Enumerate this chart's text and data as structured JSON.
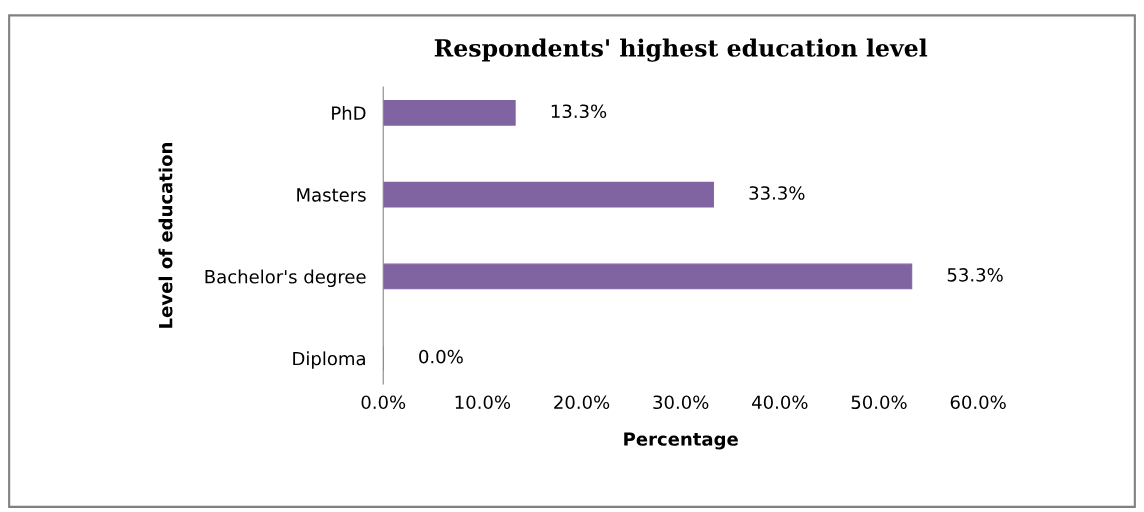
{
  "chart_data": {
    "type": "bar",
    "orientation": "horizontal",
    "title": "Respondents' highest education level",
    "xlabel": "Percentage",
    "ylabel": "Level of education",
    "categories": [
      "PhD",
      "Masters",
      "Bachelor's degree",
      "Diploma"
    ],
    "values": [
      13.3,
      33.3,
      53.3,
      0.0
    ],
    "value_labels": [
      "13.3%",
      "33.3%",
      "53.3%",
      "0.0%"
    ],
    "color": "#8064a2",
    "xlim": [
      0,
      60
    ],
    "xticks": [
      {
        "value": 0,
        "label": "0.0%"
      },
      {
        "value": 10,
        "label": "10.0%"
      },
      {
        "value": 20,
        "label": "20.0%"
      },
      {
        "value": 30,
        "label": "30.0%"
      },
      {
        "value": 40,
        "label": "40.0%"
      },
      {
        "value": 50,
        "label": "50.0%"
      },
      {
        "value": 60,
        "label": "60.0%"
      }
    ],
    "grid": false,
    "legend": false
  }
}
